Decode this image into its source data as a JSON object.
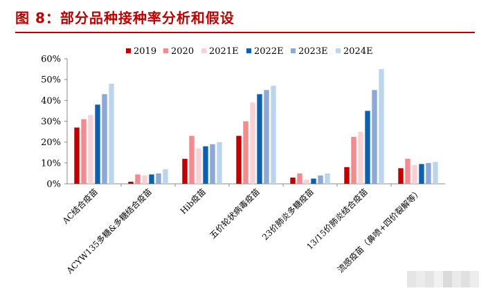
{
  "figure": {
    "title": "图 8：部分品种接种率分析和假设"
  },
  "chart_data": {
    "type": "bar",
    "categories": [
      "AC结合疫苗",
      "ACYW135多糖&多糖结合疫苗",
      "Hib疫苗",
      "五价轮状病毒疫苗",
      "23价肺炎多糖疫苗",
      "13/15价肺炎结合疫苗",
      "流感疫苗（鼻喷+四价裂解等）"
    ],
    "series": [
      {
        "name": "2019",
        "color": "#c00000",
        "values": [
          27,
          1,
          12,
          23,
          3,
          8,
          7.5
        ]
      },
      {
        "name": "2020",
        "color": "#f4898e",
        "values": [
          31,
          4.5,
          23,
          30,
          5,
          22.5,
          12
        ]
      },
      {
        "name": "2021E",
        "color": "#fbd0d2",
        "values": [
          33,
          4,
          17,
          39,
          2,
          25,
          9
        ]
      },
      {
        "name": "2022E",
        "color": "#0d60b0",
        "values": [
          38,
          4.5,
          18,
          43,
          2.5,
          35,
          9.5
        ]
      },
      {
        "name": "2023E",
        "color": "#8ca8d8",
        "values": [
          43,
          5,
          19,
          45,
          4,
          45,
          10
        ]
      },
      {
        "name": "2024E",
        "color": "#bcd5ee",
        "values": [
          48,
          7,
          20,
          47,
          5,
          55,
          10.5
        ]
      }
    ],
    "yticks": [
      "0%",
      "10%",
      "20%",
      "30%",
      "40%",
      "50%",
      "60%"
    ],
    "ylim": [
      0,
      60
    ],
    "legend_position": "top",
    "grid": false
  },
  "watermark": {
    "color": "#d0d0d0"
  }
}
